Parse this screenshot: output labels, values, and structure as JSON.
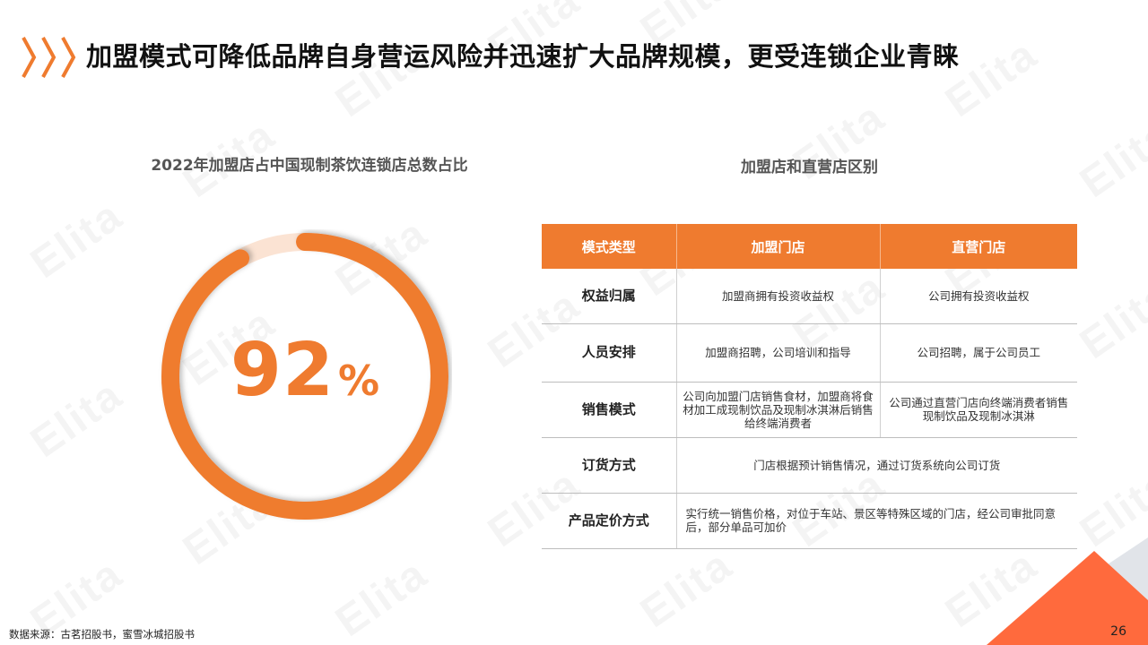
{
  "header": {
    "title": "加盟模式可降低品牌自身营运风险并迅速扩大品牌规模，更受连锁企业青睐",
    "accent_color": "#ef7b2f"
  },
  "left_panel": {
    "title": "2022年加盟店占中国现制茶饮连锁店总数占比",
    "donut": {
      "value": 92,
      "value_text": "92",
      "unit": "%",
      "fill_color": "#ef7b2f",
      "track_color": "#fbe3d3"
    }
  },
  "right_panel": {
    "title": "加盟店和直营店区别",
    "table": {
      "headers": [
        "模式类型",
        "加盟门店",
        "直营门店"
      ],
      "rows": [
        {
          "label": "权益归属",
          "franchise": "加盟商拥有投资收益权",
          "direct": "公司拥有投资收益权"
        },
        {
          "label": "人员安排",
          "franchise": "加盟商招聘，公司培训和指导",
          "direct": "公司招聘，属于公司员工"
        },
        {
          "label": "销售模式",
          "franchise": "公司向加盟门店销售食材，加盟商将食材加工成现制饮品及现制冰淇淋后销售给终端消费者",
          "direct": "公司通过直营门店向终端消费者销售现制饮品及现制冰淇淋"
        },
        {
          "label": "订货方式",
          "merged": "门店根据预计销售情况，通过订货系统向公司订货"
        },
        {
          "label": "产品定价方式",
          "merged": "实行统一销售价格，对位于车站、景区等特殊区域的门店，经公司审批同意后，部分单品可加价"
        }
      ]
    }
  },
  "footer": {
    "source": "数据来源：古茗招股书，蜜雪冰城招股书",
    "page_number": "26"
  },
  "watermark": "Elita"
}
